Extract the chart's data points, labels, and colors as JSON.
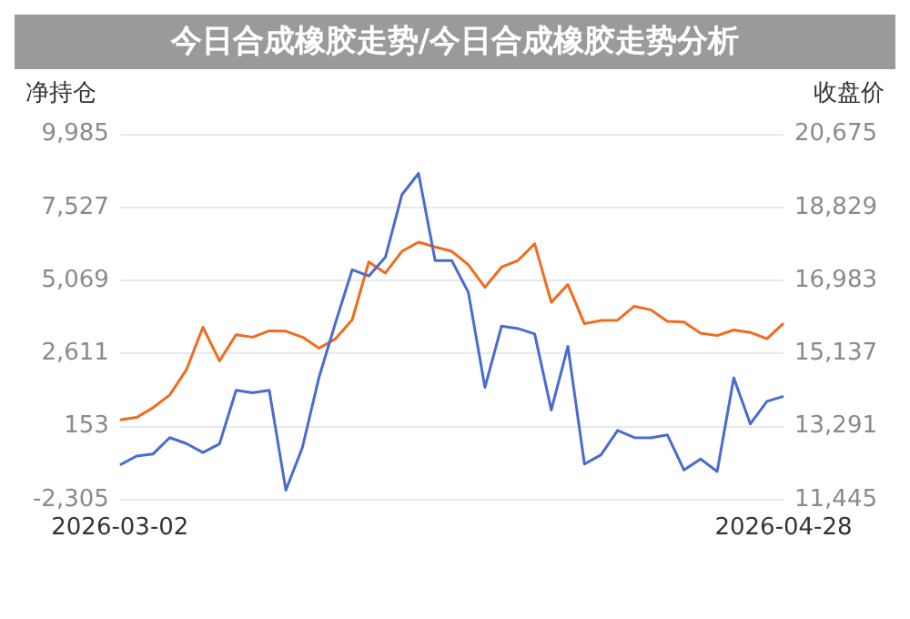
{
  "chart_data": {
    "type": "line",
    "title": "今日合成橡胶走势/今日合成橡胶走势分析",
    "ylabel": "净持仓",
    "y2label": "收盘价",
    "categories": [
      "2026-03-02",
      null,
      null,
      null,
      null,
      null,
      null,
      null,
      null,
      null,
      null,
      null,
      null,
      null,
      null,
      null,
      null,
      null,
      null,
      null,
      null,
      null,
      null,
      null,
      null,
      null,
      null,
      null,
      null,
      null,
      null,
      null,
      null,
      null,
      null,
      null,
      null,
      null,
      null,
      null,
      "2026-04-28"
    ],
    "series": [
      {
        "color": "#4a6bd0",
        "values": [
          -1140,
          -840,
          -770,
          -220,
          -420,
          -720,
          -430,
          1370,
          1290,
          1370,
          -1990,
          -550,
          1810,
          3660,
          5430,
          5220,
          5850,
          7960,
          8670,
          5740,
          5740,
          4670,
          1470,
          3530,
          3450,
          3270,
          710,
          2850,
          -1110,
          -800,
          20,
          -220,
          -230,
          -130,
          -1310,
          -940,
          -1360,
          1790,
          240,
          1000,
          1170
        ]
      },
      {
        "color": "#f26b1d",
        "axis": "y2",
        "values": [
          13460,
          13520,
          13770,
          14090,
          14720,
          15800,
          14950,
          15610,
          15550,
          15710,
          15700,
          15550,
          15270,
          15510,
          15990,
          17450,
          17170,
          17720,
          17950,
          17830,
          17720,
          17380,
          16810,
          17320,
          17490,
          17910,
          16430,
          16880,
          15890,
          15970,
          15980,
          16330,
          16240,
          15950,
          15930,
          15650,
          15590,
          15730,
          15670,
          15510,
          15900
        ]
      }
    ],
    "ylim": [
      -2305,
      9985
    ],
    "yticks": [
      {
        "value": -2305,
        "label": "-2,305"
      },
      {
        "value": 153,
        "label": "153"
      },
      {
        "value": 2611,
        "label": "2,611"
      },
      {
        "value": 5069,
        "label": "5,069"
      },
      {
        "value": 7527,
        "label": "7,527"
      },
      {
        "value": 9985,
        "label": "9,985"
      }
    ],
    "y2lim": [
      11445,
      20675
    ],
    "y2ticks": [
      {
        "value": 11445,
        "label": "11,445"
      },
      {
        "value": 13291,
        "label": "13,291"
      },
      {
        "value": 15137,
        "label": "15,137"
      },
      {
        "value": 16983,
        "label": "16,983"
      },
      {
        "value": 18829,
        "label": "18,829"
      },
      {
        "value": 20675,
        "label": "20,675"
      }
    ],
    "grid": "y",
    "legend": false,
    "marker": "none",
    "line_style": "solid"
  }
}
